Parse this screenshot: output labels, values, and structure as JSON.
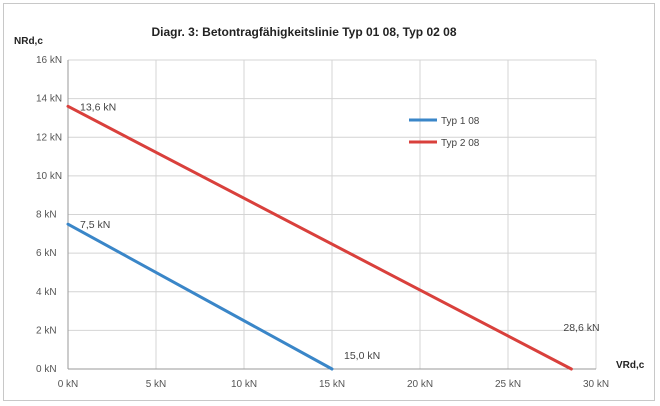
{
  "chart_data": {
    "type": "line",
    "title": "Diagr. 3: Betontragfähigkeitslinie Typ 01 08, Typ 02 08",
    "xlabel": "VRd,c",
    "ylabel": "NRd,c",
    "xlim": [
      0,
      30
    ],
    "ylim": [
      0,
      16
    ],
    "x_ticks": [
      0,
      5,
      10,
      15,
      20,
      25,
      30
    ],
    "y_ticks": [
      0,
      2,
      4,
      6,
      8,
      10,
      12,
      14,
      16
    ],
    "x_tick_labels": [
      "0 kN",
      "5 kN",
      "10 kN",
      "15 kN",
      "20 kN",
      "25 kN",
      "30 kN"
    ],
    "y_tick_labels": [
      "0 kN",
      "2 kN",
      "4 kN",
      "6 kN",
      "8 kN",
      "10 kN",
      "12 kN",
      "14 kN",
      "16 kN"
    ],
    "grid": true,
    "legend_position": "top-right",
    "series": [
      {
        "name": "Typ 1 08",
        "color": "#3a86c8",
        "x": [
          0,
          15.0
        ],
        "y": [
          7.5,
          0
        ]
      },
      {
        "name": "Typ 2 08",
        "color": "#d9403c",
        "x": [
          0,
          28.6
        ],
        "y": [
          13.6,
          0
        ]
      }
    ],
    "annotations": [
      {
        "text": "13,6 kN",
        "x": 0,
        "y": 13.6
      },
      {
        "text": "7,5 kN",
        "x": 0,
        "y": 7.5
      },
      {
        "text": "15,0 kN",
        "x": 15.0,
        "y": 0
      },
      {
        "text": "28,6 kN",
        "x": 28.6,
        "y": 0
      }
    ]
  }
}
